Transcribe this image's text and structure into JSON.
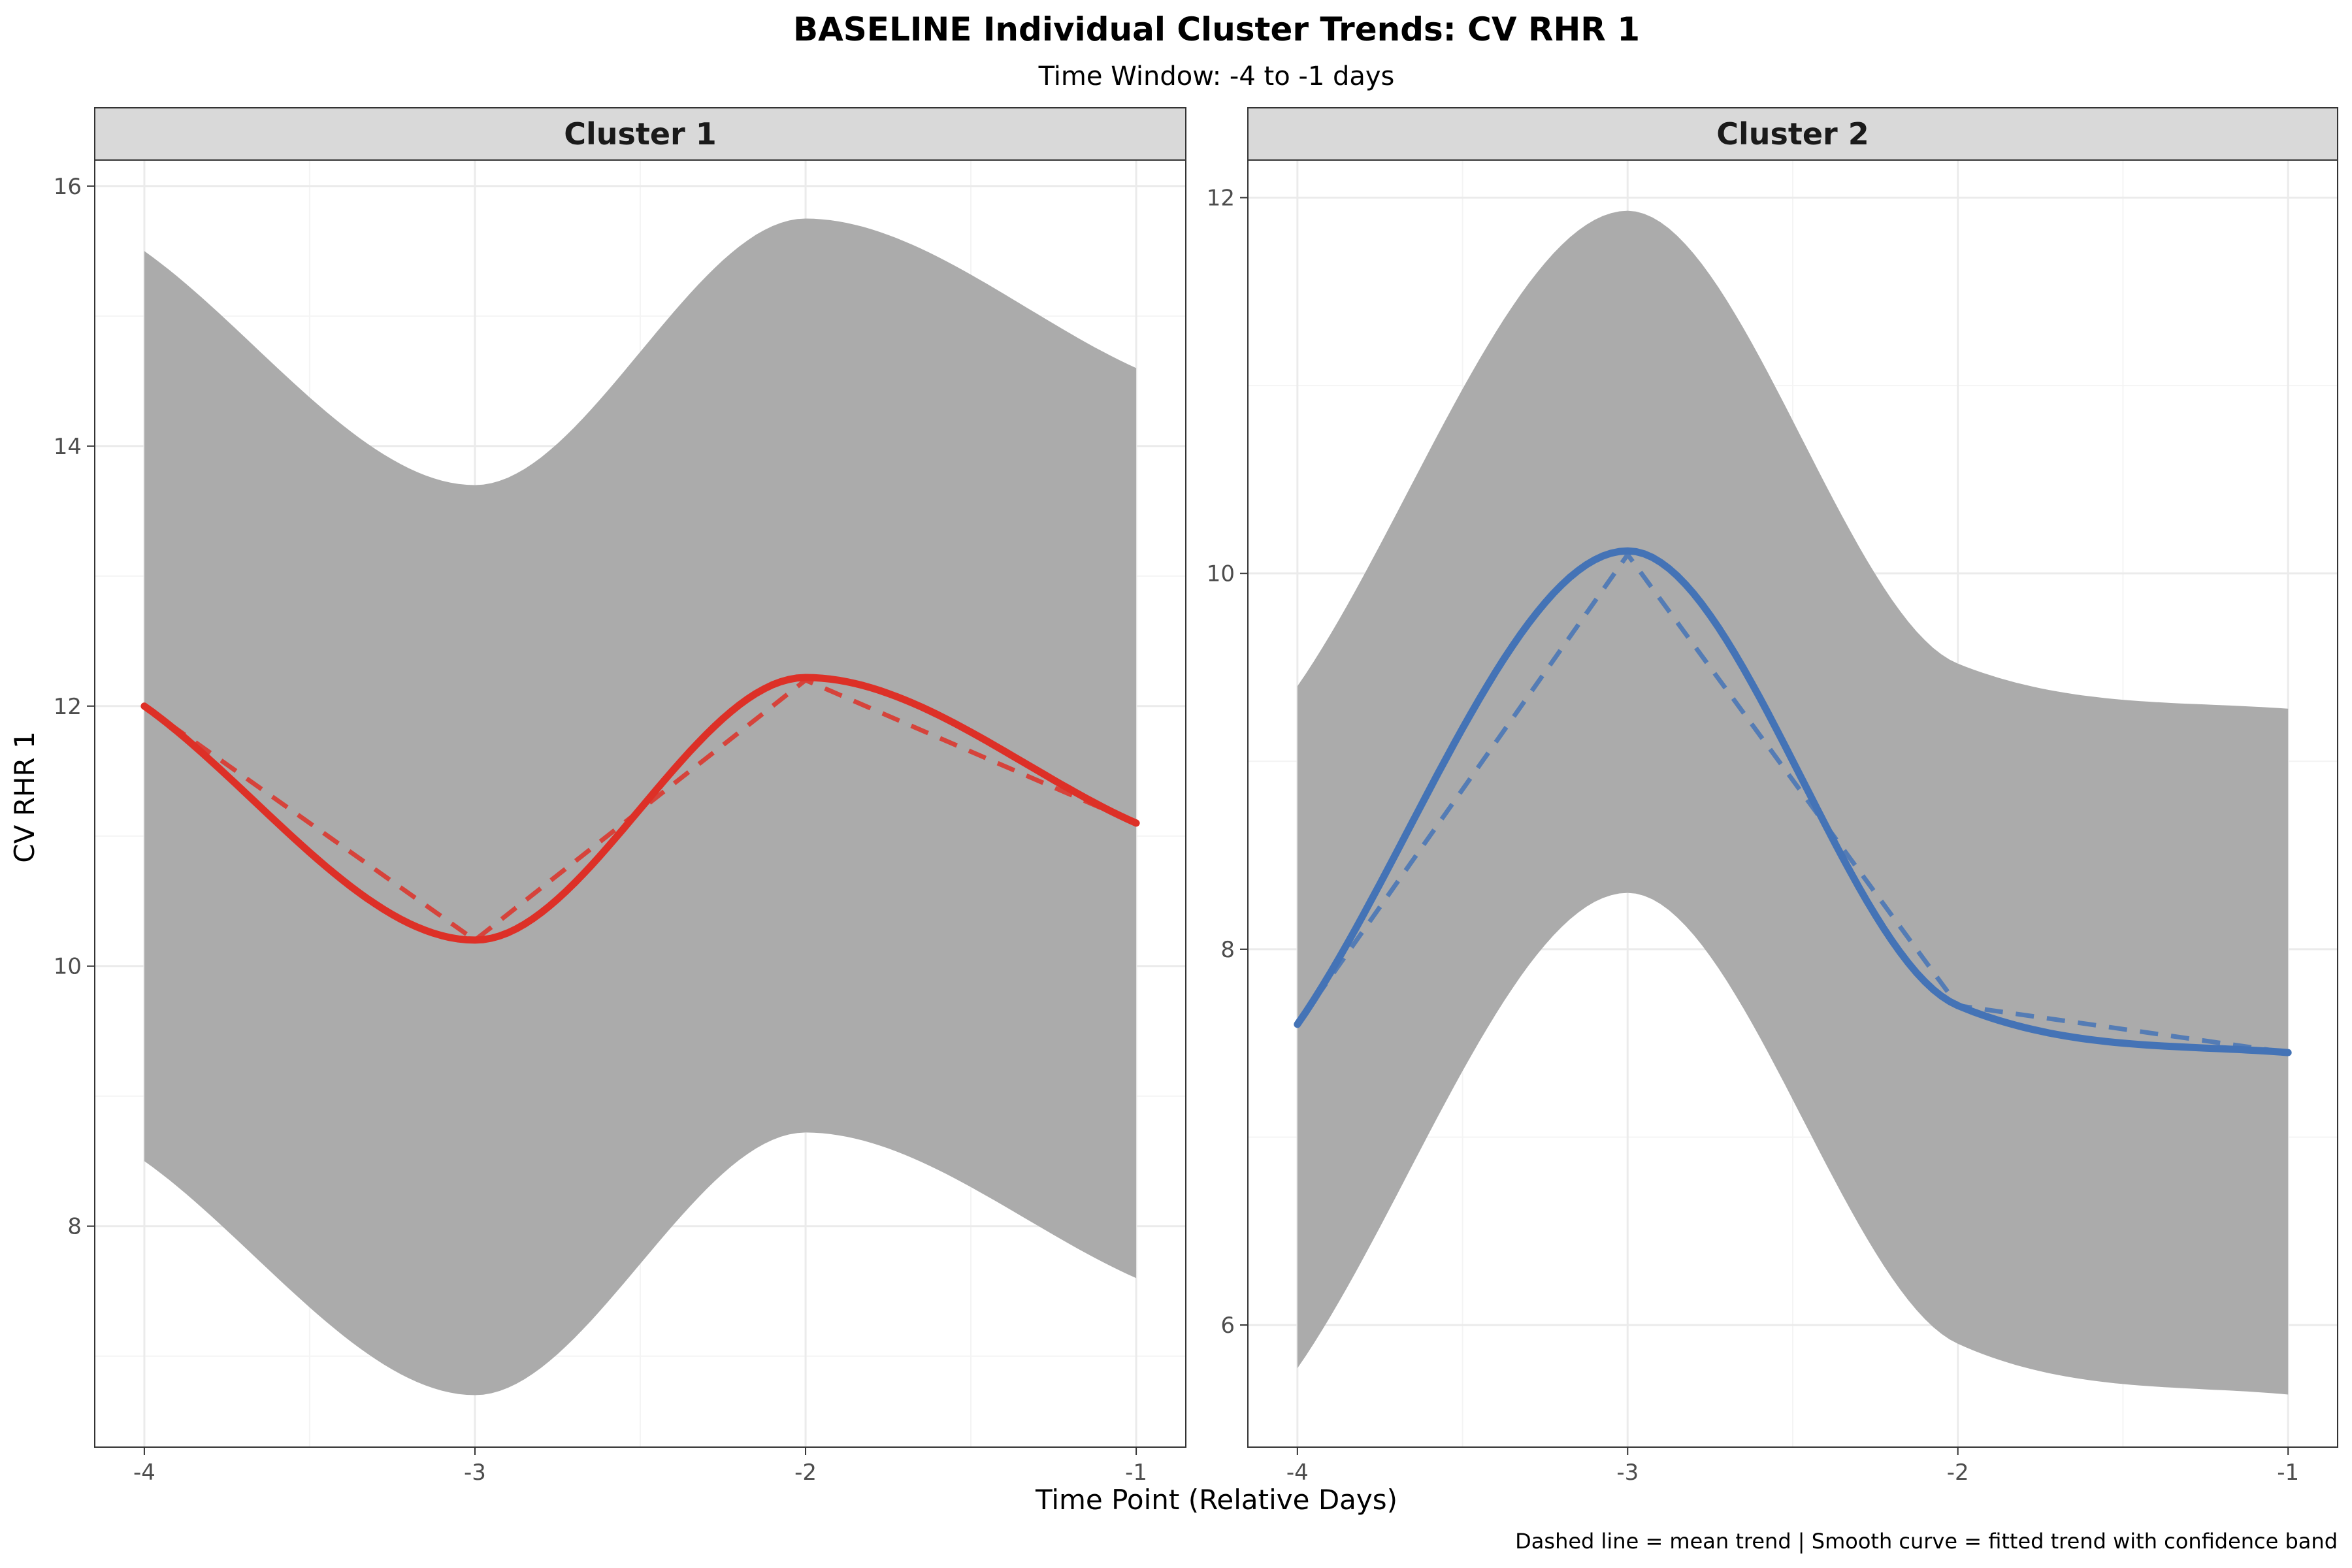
{
  "title": "BASELINE Individual Cluster Trends: CV RHR 1",
  "subtitle": "Time Window: -4 to -1 days",
  "caption": "Dashed line = mean trend | Smooth curve = fitted trend with confidence band",
  "xlabel": "Time Point (Relative Days)",
  "ylabel": "CV RHR 1",
  "colors": {
    "band": "#ababab",
    "strip_bg": "#d9d9d9",
    "grid_major": "#ebebeb",
    "grid_minor": "#f4f4f4",
    "panel_border": "#333333"
  },
  "chart_data": [
    {
      "type": "line",
      "panel": "Cluster 1",
      "color": "#dd3027",
      "x": [
        -4,
        -3,
        -2,
        -1
      ],
      "mean": [
        12.0,
        10.2,
        12.2,
        11.1
      ],
      "smooth": [
        12.0,
        10.2,
        12.22,
        11.1
      ],
      "band_upper": [
        15.5,
        13.7,
        15.75,
        14.6
      ],
      "band_lower": [
        8.5,
        6.7,
        8.72,
        7.6
      ],
      "ylim": [
        6.3,
        16.2
      ],
      "xticks": [
        -4,
        -3,
        -2,
        -1
      ],
      "xtick_labels": [
        "-4",
        "-3",
        "-2",
        "-1"
      ],
      "yticks": [
        8,
        10,
        12,
        14,
        16
      ],
      "ytick_labels": [
        "8",
        "10",
        "12",
        "14",
        "16"
      ]
    },
    {
      "type": "line",
      "panel": "Cluster 2",
      "color": "#4473b6",
      "x": [
        -4,
        -3,
        -2,
        -1
      ],
      "mean": [
        7.6,
        10.1,
        7.7,
        7.45
      ],
      "smooth": [
        7.6,
        10.12,
        7.7,
        7.45
      ],
      "band_upper": [
        9.4,
        11.93,
        9.52,
        9.28
      ],
      "band_lower": [
        5.77,
        8.3,
        5.9,
        5.63
      ],
      "ylim": [
        5.35,
        12.2
      ],
      "xticks": [
        -4,
        -3,
        -2,
        -1
      ],
      "xtick_labels": [
        "-4",
        "-3",
        "-2",
        "-1"
      ],
      "yticks": [
        6,
        8,
        10,
        12
      ],
      "ytick_labels": [
        "6",
        "8",
        "10",
        "12"
      ]
    }
  ]
}
